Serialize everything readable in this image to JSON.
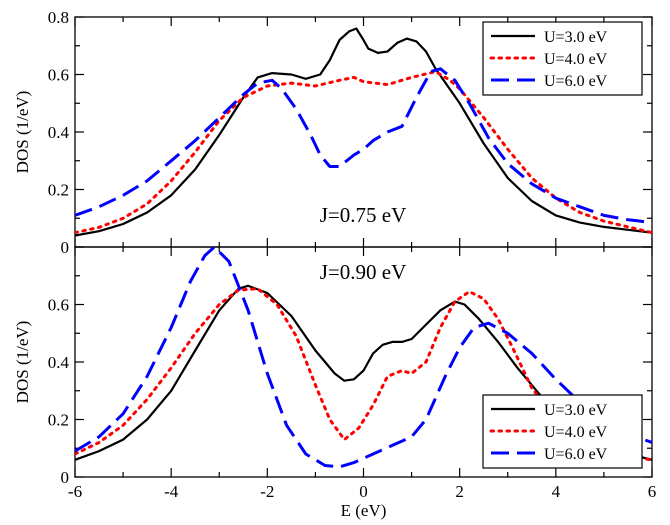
{
  "chart_data": {
    "type": "line",
    "xlabel": "E (eV)",
    "xlim": [
      -6,
      6
    ],
    "xticks": [
      "-6",
      "-4",
      "-2",
      "0",
      "2",
      "4",
      "6"
    ],
    "legend_position": "top-right / bottom-right",
    "series_styles": [
      {
        "legend_label": "U=3.0 eV",
        "color": "#000000",
        "dash": "solid"
      },
      {
        "legend_label": "U=4.0 eV",
        "color": "#ff0000",
        "dash": "dotted"
      },
      {
        "legend_label": "U=6.0 eV",
        "color": "#0000ff",
        "dash": "dashed"
      }
    ],
    "panels": [
      {
        "annotation": "J=0.75 eV",
        "ylabel": "DOS (1/eV)",
        "ylim": [
          0,
          0.8
        ],
        "yticks": [
          "0",
          "0.2",
          "0.4",
          "0.6",
          "0.8"
        ],
        "series": [
          {
            "name": "U=3.0 eV",
            "points": [
              [
                -6,
                0.04
              ],
              [
                -5.5,
                0.055
              ],
              [
                -5,
                0.08
              ],
              [
                -4.5,
                0.12
              ],
              [
                -4,
                0.18
              ],
              [
                -3.5,
                0.27
              ],
              [
                -3,
                0.39
              ],
              [
                -2.5,
                0.52
              ],
              [
                -2.2,
                0.59
              ],
              [
                -1.9,
                0.605
              ],
              [
                -1.5,
                0.6
              ],
              [
                -1.2,
                0.585
              ],
              [
                -0.9,
                0.6
              ],
              [
                -0.7,
                0.65
              ],
              [
                -0.5,
                0.72
              ],
              [
                -0.3,
                0.75
              ],
              [
                -0.15,
                0.76
              ],
              [
                0,
                0.72
              ],
              [
                0.1,
                0.69
              ],
              [
                0.3,
                0.675
              ],
              [
                0.5,
                0.68
              ],
              [
                0.7,
                0.71
              ],
              [
                0.9,
                0.725
              ],
              [
                1.1,
                0.715
              ],
              [
                1.3,
                0.68
              ],
              [
                1.5,
                0.62
              ],
              [
                2,
                0.5
              ],
              [
                2.5,
                0.36
              ],
              [
                3,
                0.24
              ],
              [
                3.5,
                0.16
              ],
              [
                4,
                0.11
              ],
              [
                4.5,
                0.085
              ],
              [
                5,
                0.07
              ],
              [
                5.5,
                0.06
              ],
              [
                6,
                0.05
              ]
            ]
          },
          {
            "name": "U=4.0 eV",
            "points": [
              [
                -6,
                0.05
              ],
              [
                -5.5,
                0.068
              ],
              [
                -5,
                0.1
              ],
              [
                -4.5,
                0.15
              ],
              [
                -4,
                0.23
              ],
              [
                -3.5,
                0.33
              ],
              [
                -3,
                0.44
              ],
              [
                -2.5,
                0.52
              ],
              [
                -2,
                0.56
              ],
              [
                -1.5,
                0.57
              ],
              [
                -1,
                0.56
              ],
              [
                -0.5,
                0.58
              ],
              [
                -0.2,
                0.59
              ],
              [
                0,
                0.575
              ],
              [
                0.5,
                0.565
              ],
              [
                1,
                0.59
              ],
              [
                1.5,
                0.61
              ],
              [
                1.8,
                0.58
              ],
              [
                2,
                0.55
              ],
              [
                2.5,
                0.45
              ],
              [
                3,
                0.34
              ],
              [
                3.5,
                0.24
              ],
              [
                4,
                0.17
              ],
              [
                4.5,
                0.12
              ],
              [
                5,
                0.09
              ],
              [
                5.5,
                0.07
              ],
              [
                6,
                0.05
              ]
            ]
          },
          {
            "name": "U=6.0 eV",
            "points": [
              [
                -6,
                0.11
              ],
              [
                -5.5,
                0.14
              ],
              [
                -5,
                0.18
              ],
              [
                -4.5,
                0.23
              ],
              [
                -4,
                0.3
              ],
              [
                -3.5,
                0.37
              ],
              [
                -3,
                0.45
              ],
              [
                -2.5,
                0.53
              ],
              [
                -2.2,
                0.57
              ],
              [
                -1.9,
                0.58
              ],
              [
                -1.7,
                0.55
              ],
              [
                -1.4,
                0.48
              ],
              [
                -1.1,
                0.39
              ],
              [
                -0.9,
                0.32
              ],
              [
                -0.7,
                0.28
              ],
              [
                -0.5,
                0.28
              ],
              [
                -0.2,
                0.32
              ],
              [
                0,
                0.34
              ],
              [
                0.2,
                0.37
              ],
              [
                0.5,
                0.4
              ],
              [
                0.8,
                0.42
              ],
              [
                1.1,
                0.52
              ],
              [
                1.4,
                0.61
              ],
              [
                1.6,
                0.62
              ],
              [
                1.9,
                0.58
              ],
              [
                2.2,
                0.5
              ],
              [
                2.6,
                0.38
              ],
              [
                3,
                0.29
              ],
              [
                3.5,
                0.22
              ],
              [
                4,
                0.17
              ],
              [
                4.5,
                0.14
              ],
              [
                5,
                0.11
              ],
              [
                5.5,
                0.095
              ],
              [
                6,
                0.085
              ]
            ]
          }
        ]
      },
      {
        "annotation": "J=0.90 eV",
        "ylabel": "DOS (1/eV)",
        "ylim": [
          0,
          0.8
        ],
        "yticks": [
          "0",
          "0.2",
          "0.4",
          "0.6"
        ],
        "series": [
          {
            "name": "U=3.0 eV",
            "points": [
              [
                -6,
                0.06
              ],
              [
                -5.5,
                0.09
              ],
              [
                -5,
                0.13
              ],
              [
                -4.5,
                0.2
              ],
              [
                -4,
                0.3
              ],
              [
                -3.5,
                0.44
              ],
              [
                -3,
                0.58
              ],
              [
                -2.6,
                0.655
              ],
              [
                -2.4,
                0.665
              ],
              [
                -2,
                0.64
              ],
              [
                -1.5,
                0.56
              ],
              [
                -1,
                0.44
              ],
              [
                -0.6,
                0.36
              ],
              [
                -0.4,
                0.335
              ],
              [
                -0.2,
                0.34
              ],
              [
                0,
                0.37
              ],
              [
                0.2,
                0.43
              ],
              [
                0.4,
                0.46
              ],
              [
                0.6,
                0.47
              ],
              [
                0.8,
                0.47
              ],
              [
                1,
                0.48
              ],
              [
                1.3,
                0.53
              ],
              [
                1.6,
                0.58
              ],
              [
                1.9,
                0.61
              ],
              [
                2.1,
                0.6
              ],
              [
                2.4,
                0.55
              ],
              [
                2.8,
                0.47
              ],
              [
                3.2,
                0.38
              ],
              [
                3.6,
                0.3
              ],
              [
                4,
                0.22
              ],
              [
                4.5,
                0.16
              ],
              [
                5,
                0.11
              ],
              [
                5.5,
                0.08
              ],
              [
                6,
                0.06
              ]
            ]
          },
          {
            "name": "U=4.0 eV",
            "points": [
              [
                -6,
                0.08
              ],
              [
                -5.5,
                0.12
              ],
              [
                -5,
                0.18
              ],
              [
                -4.5,
                0.27
              ],
              [
                -4,
                0.38
              ],
              [
                -3.5,
                0.5
              ],
              [
                -3,
                0.6
              ],
              [
                -2.6,
                0.65
              ],
              [
                -2.2,
                0.655
              ],
              [
                -1.8,
                0.6
              ],
              [
                -1.4,
                0.49
              ],
              [
                -1,
                0.32
              ],
              [
                -0.7,
                0.2
              ],
              [
                -0.4,
                0.13
              ],
              [
                -0.1,
                0.17
              ],
              [
                0.2,
                0.25
              ],
              [
                0.5,
                0.35
              ],
              [
                0.8,
                0.37
              ],
              [
                1,
                0.36
              ],
              [
                1.3,
                0.4
              ],
              [
                1.6,
                0.52
              ],
              [
                1.9,
                0.61
              ],
              [
                2.2,
                0.645
              ],
              [
                2.5,
                0.62
              ],
              [
                2.8,
                0.55
              ],
              [
                3.1,
                0.45
              ],
              [
                3.5,
                0.31
              ],
              [
                4,
                0.2
              ],
              [
                4.5,
                0.13
              ],
              [
                5,
                0.09
              ],
              [
                5.5,
                0.07
              ],
              [
                6,
                0.06
              ]
            ]
          },
          {
            "name": "U=6.0 eV",
            "points": [
              [
                -6,
                0.09
              ],
              [
                -5.5,
                0.14
              ],
              [
                -5,
                0.22
              ],
              [
                -4.5,
                0.35
              ],
              [
                -4,
                0.52
              ],
              [
                -3.6,
                0.68
              ],
              [
                -3.3,
                0.77
              ],
              [
                -3.1,
                0.8
              ],
              [
                -2.8,
                0.75
              ],
              [
                -2.4,
                0.58
              ],
              [
                -2,
                0.36
              ],
              [
                -1.6,
                0.18
              ],
              [
                -1.2,
                0.08
              ],
              [
                -0.8,
                0.04
              ],
              [
                -0.5,
                0.035
              ],
              [
                -0.2,
                0.05
              ],
              [
                0.2,
                0.08
              ],
              [
                0.6,
                0.11
              ],
              [
                1,
                0.14
              ],
              [
                1.3,
                0.2
              ],
              [
                1.7,
                0.35
              ],
              [
                2,
                0.45
              ],
              [
                2.3,
                0.52
              ],
              [
                2.6,
                0.535
              ],
              [
                3,
                0.5
              ],
              [
                3.5,
                0.43
              ],
              [
                4,
                0.34
              ],
              [
                4.5,
                0.26
              ],
              [
                5,
                0.2
              ],
              [
                5.5,
                0.15
              ],
              [
                6,
                0.12
              ]
            ]
          }
        ]
      }
    ]
  }
}
